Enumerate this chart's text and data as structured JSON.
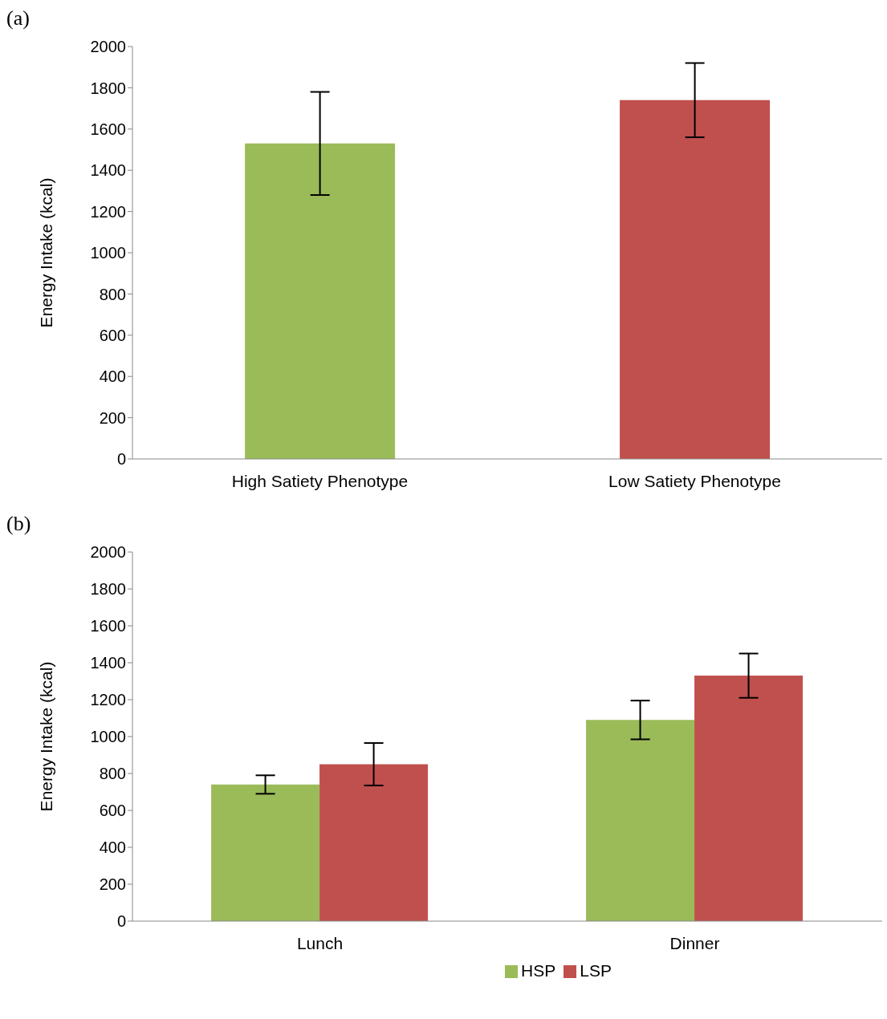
{
  "chart_data": [
    {
      "type": "bar",
      "title": "(a)",
      "ylabel": "Energy Intake (kcal)",
      "categories": [
        "High Satiety Phenotype",
        "Low Satiety Phenotype"
      ],
      "values": [
        1530,
        1740
      ],
      "errors": [
        250,
        180
      ],
      "colors": [
        "#9bbb59",
        "#c0504d"
      ],
      "ylim": [
        0,
        2000
      ],
      "yticks": [
        0,
        200,
        400,
        600,
        800,
        1000,
        1200,
        1400,
        1600,
        1800,
        2000
      ],
      "grid": false,
      "legend": false
    },
    {
      "type": "bar",
      "title": "(b)",
      "ylabel": "Energy Intake (kcal)",
      "categories": [
        "Lunch",
        "Dinner"
      ],
      "series": [
        {
          "name": "HSP",
          "color": "#9bbb59",
          "values": [
            740,
            1090
          ],
          "errors": [
            50,
            105
          ]
        },
        {
          "name": "LSP",
          "color": "#c0504d",
          "values": [
            850,
            1330
          ],
          "errors": [
            115,
            120
          ]
        }
      ],
      "ylim": [
        0,
        2000
      ],
      "yticks": [
        0,
        200,
        400,
        600,
        800,
        1000,
        1200,
        1400,
        1600,
        1800,
        2000
      ],
      "grid": false,
      "legend": "bottom"
    }
  ]
}
